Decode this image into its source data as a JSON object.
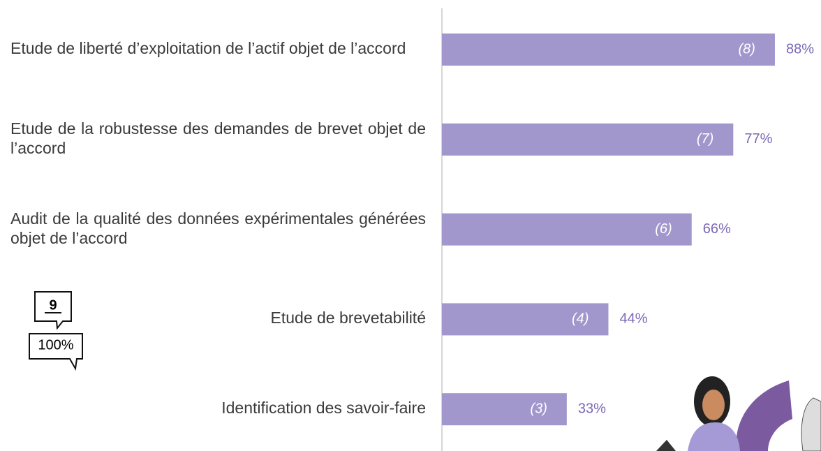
{
  "chart_data": {
    "type": "hbar",
    "categories": [
      "Etude de liberté d’exploitation de l’actif objet de l’accord",
      "Etude de la robustesse des demandes de brevet objet de l’accord",
      "Audit de la qualité des données expérimentales générées objet de l’accord",
      "Etude de brevetabilité",
      "Identification des savoir-faire"
    ],
    "values": [
      88,
      77,
      66,
      44,
      33
    ],
    "value_labels": [
      "88%",
      "77%",
      "66%",
      "44%",
      "33%"
    ],
    "count_labels": [
      "(8)",
      "(7)",
      "(6)",
      "(4)",
      "(3)"
    ],
    "color": "#a197cc",
    "xlim": [
      0,
      100
    ],
    "legend_count": "9",
    "legend_percent": "100%"
  }
}
